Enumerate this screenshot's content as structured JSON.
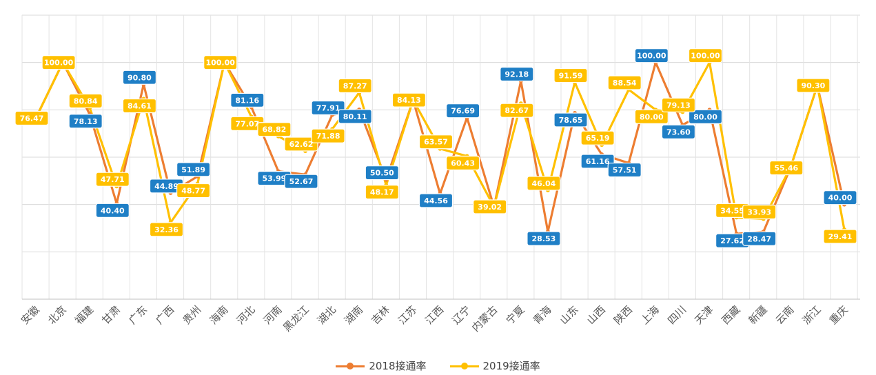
{
  "chart_data": {
    "type": "line",
    "title": "",
    "xlabel": "",
    "ylabel": "",
    "ylim": [
      0,
      120
    ],
    "grid": true,
    "legend_position": "bottom",
    "categories": [
      "安徽",
      "北京",
      "福建",
      "甘肃",
      "广东",
      "广西",
      "贵州",
      "海南",
      "河北",
      "河南",
      "黑龙江",
      "湖北",
      "湖南",
      "吉林",
      "江苏",
      "江西",
      "辽宁",
      "内蒙古",
      "宁夏",
      "青海",
      "山东",
      "山西",
      "陕西",
      "上海",
      "四川",
      "天津",
      "西藏",
      "新疆",
      "云南",
      "浙江",
      "重庆"
    ],
    "series": [
      {
        "name": "2018接通率",
        "color": "#ED7D31",
        "label_color": "#1F7FC6",
        "values": [
          76.47,
          100.0,
          78.13,
          40.4,
          90.8,
          44.89,
          51.89,
          100.0,
          81.16,
          53.99,
          52.67,
          77.91,
          80.11,
          50.5,
          84.13,
          44.56,
          76.69,
          39.02,
          92.18,
          28.53,
          78.65,
          61.16,
          57.51,
          100.0,
          73.6,
          80.0,
          27.62,
          28.47,
          55.46,
          90.3,
          40.0
        ],
        "labels": [
          "",
          "",
          "78.13",
          "40.40",
          "90.80",
          "44.89",
          "51.89",
          "",
          "81.16",
          "53.99",
          "52.67",
          "77.91",
          "80.11",
          "50.50",
          "",
          "44.56",
          "76.69",
          "",
          "92.18",
          "28.53",
          "78.65",
          "61.16",
          "57.51",
          "100.00",
          "73.60",
          "80.00",
          "27.62",
          "28.47",
          "",
          "",
          "40.00"
        ]
      },
      {
        "name": "2019接通率",
        "color": "#FFC000",
        "label_color": "#FFC000",
        "values": [
          76.47,
          100.0,
          80.84,
          47.71,
          84.61,
          32.36,
          48.77,
          100.0,
          77.07,
          68.82,
          62.62,
          71.88,
          87.27,
          48.17,
          84.13,
          63.57,
          60.43,
          39.02,
          82.67,
          46.04,
          91.59,
          65.19,
          88.54,
          80.0,
          79.13,
          100.0,
          34.55,
          33.93,
          55.46,
          90.3,
          29.41
        ],
        "labels": [
          "76.47",
          "100.00",
          "80.84",
          "47.71",
          "84.61",
          "32.36",
          "48.77",
          "100.00",
          "77.07",
          "68.82",
          "62.62",
          "71.88",
          "87.27",
          "48.17",
          "84.13",
          "63.57",
          "60.43",
          "39.02",
          "82.67",
          "46.04",
          "91.59",
          "65.19",
          "88.54",
          "80.00",
          "79.13",
          "100.00",
          "34.55",
          "33.93",
          "55.46",
          "90.30",
          "29.41"
        ]
      }
    ]
  }
}
